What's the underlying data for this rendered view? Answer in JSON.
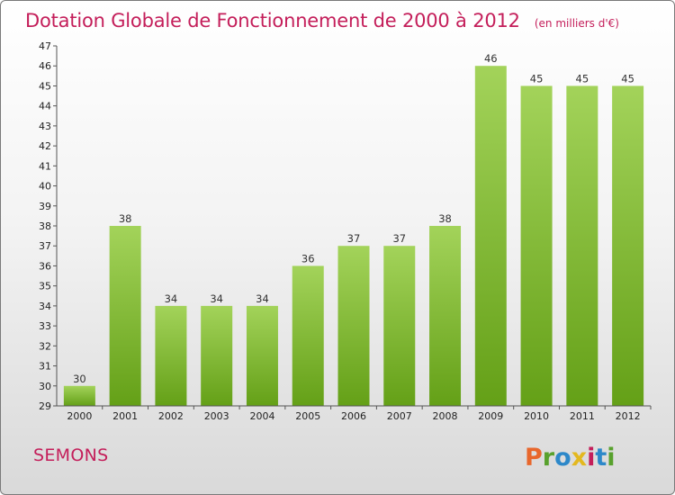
{
  "header": {
    "title": "Dotation Globale de Fonctionnement de 2000 à 2012",
    "unit": "(en milliers d'€)"
  },
  "footer": {
    "commune": "SEMONS",
    "logo": {
      "letters": [
        "P",
        "r",
        "o",
        "x",
        "i",
        "t",
        "i"
      ],
      "colors": [
        "#e8672c",
        "#58a12d",
        "#2d88c9",
        "#e3b81f",
        "#c41e5a",
        "#2d88c9",
        "#58a12d"
      ]
    }
  },
  "chart_data": {
    "type": "bar",
    "categories": [
      "2000",
      "2001",
      "2002",
      "2003",
      "2004",
      "2005",
      "2006",
      "2007",
      "2008",
      "2009",
      "2010",
      "2011",
      "2012"
    ],
    "values": [
      30,
      38,
      34,
      34,
      34,
      36,
      37,
      37,
      38,
      46,
      45,
      45,
      45
    ],
    "ylim": [
      29,
      47
    ],
    "yticks": [
      29,
      30,
      31,
      32,
      33,
      34,
      35,
      36,
      37,
      38,
      39,
      40,
      41,
      42,
      43,
      44,
      45,
      46,
      47
    ],
    "grid": false,
    "colors": {
      "bar_top": "#a3d35a",
      "bar_bottom": "#64a017",
      "axis": "#555555"
    }
  }
}
